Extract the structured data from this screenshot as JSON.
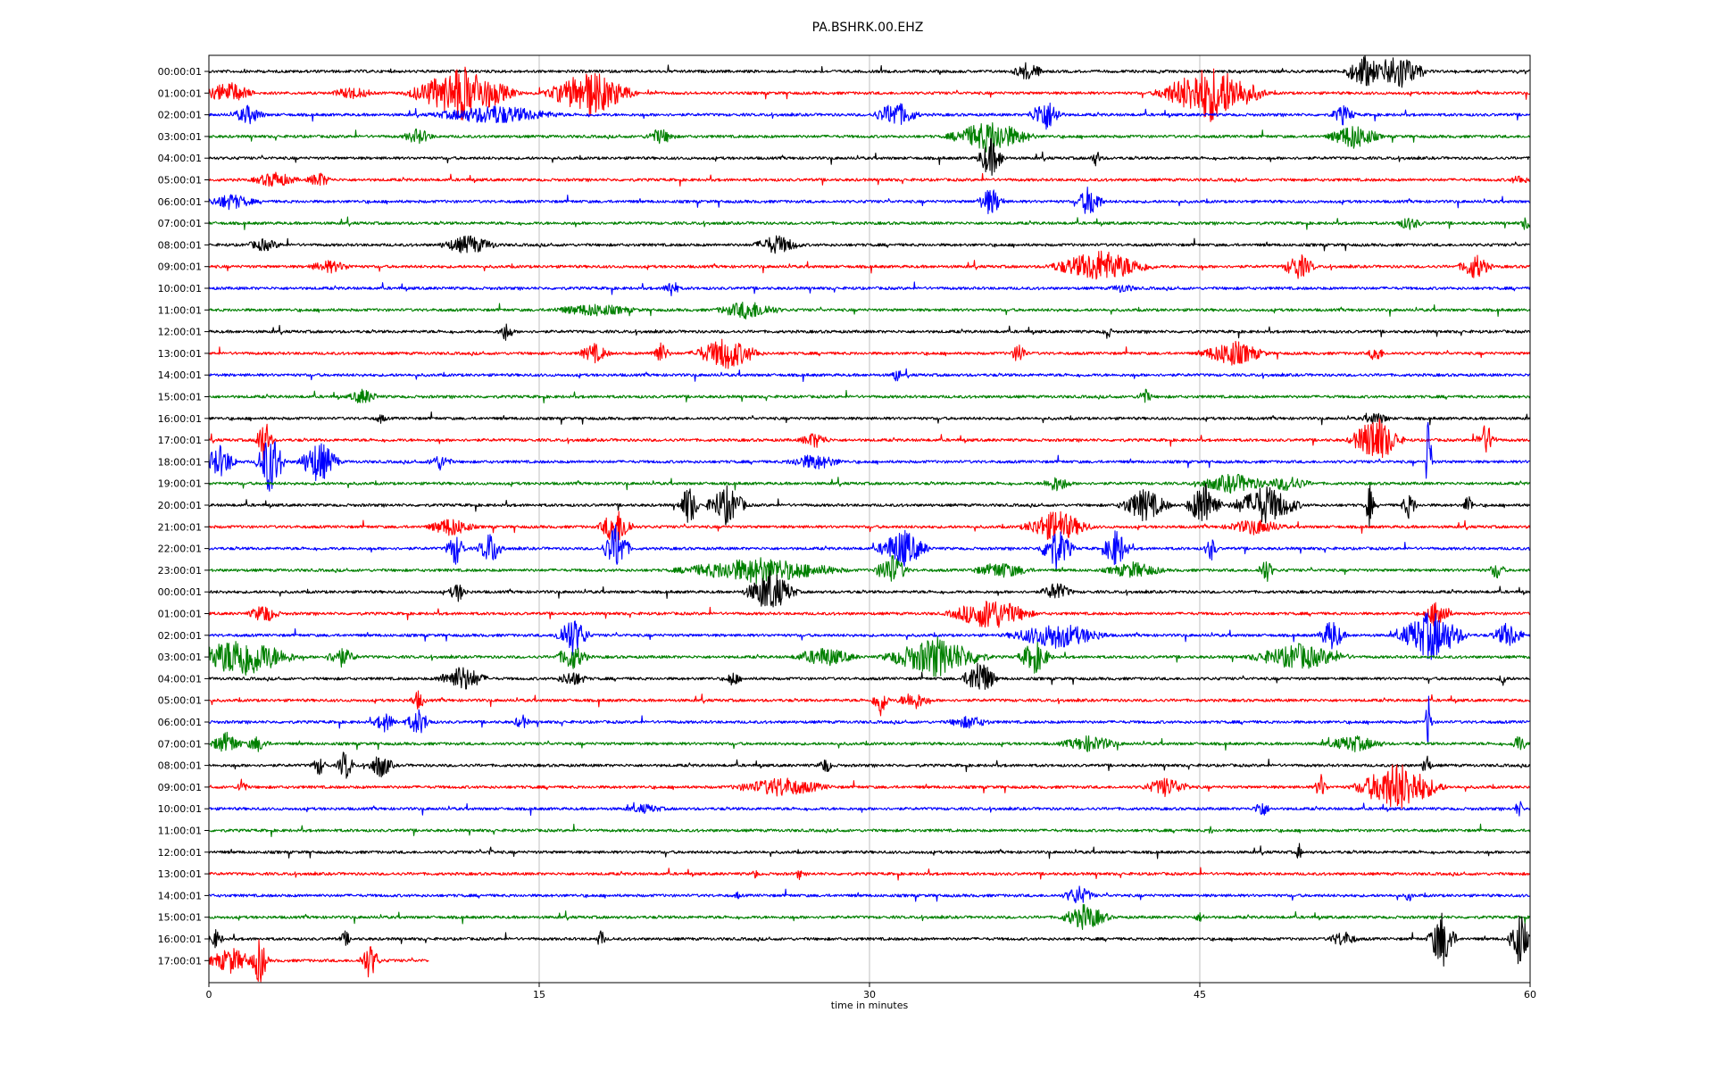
{
  "chart_data": {
    "type": "line",
    "title": "PA.BSHRK.00.EHZ",
    "xlabel": "time in minutes",
    "ylabel": "",
    "xlim": [
      0,
      60
    ],
    "x_ticks": [
      0,
      15,
      30,
      45,
      60
    ],
    "grid": "vertical lines at x ticks",
    "colors": [
      "#000000",
      "#ff0000",
      "#0000ff",
      "#008000"
    ],
    "rows": [
      {
        "label": "00:00:01",
        "color": "#000000",
        "end_minute": 60,
        "bursts": [
          [
            37.2,
            1.0,
            0.6
          ],
          [
            52.5,
            1.3,
            1.0
          ],
          [
            54.0,
            1.5,
            1.2
          ]
        ]
      },
      {
        "label": "01:00:01",
        "color": "#ff0000",
        "end_minute": 60,
        "bursts": [
          [
            0.9,
            1.5,
            0.7
          ],
          [
            6.5,
            1.4,
            0.4
          ],
          [
            11.5,
            3.0,
            1.6
          ],
          [
            17.3,
            2.5,
            1.4
          ],
          [
            45.5,
            3.0,
            1.7
          ]
        ]
      },
      {
        "label": "02:00:01",
        "color": "#0000ff",
        "end_minute": 60,
        "bursts": [
          [
            1.8,
            1.0,
            0.6
          ],
          [
            13.0,
            4.0,
            0.6
          ],
          [
            31.2,
            1.4,
            0.8
          ],
          [
            38.0,
            1.0,
            1.0
          ],
          [
            51.5,
            0.8,
            0.6
          ]
        ]
      },
      {
        "label": "03:00:01",
        "color": "#008000",
        "end_minute": 60,
        "bursts": [
          [
            9.5,
            1.0,
            0.5
          ],
          [
            20.5,
            1.0,
            0.5
          ],
          [
            35.5,
            2.5,
            1.0
          ],
          [
            52.0,
            1.6,
            0.8
          ]
        ]
      },
      {
        "label": "04:00:01",
        "color": "#000000",
        "end_minute": 60,
        "bursts": [
          [
            35.5,
            0.8,
            1.2
          ],
          [
            40.3,
            0.4,
            0.5
          ]
        ]
      },
      {
        "label": "05:00:01",
        "color": "#ff0000",
        "end_minute": 60,
        "bursts": [
          [
            3.0,
            1.5,
            0.5
          ],
          [
            5.0,
            0.8,
            0.5
          ],
          [
            59.5,
            0.8,
            0.3
          ]
        ]
      },
      {
        "label": "06:00:01",
        "color": "#0000ff",
        "end_minute": 60,
        "bursts": [
          [
            1.0,
            1.6,
            0.5
          ],
          [
            35.5,
            0.8,
            0.9
          ],
          [
            40.0,
            0.8,
            1.0
          ]
        ]
      },
      {
        "label": "07:00:01",
        "color": "#008000",
        "end_minute": 60,
        "bursts": [
          [
            54.5,
            1.0,
            0.4
          ],
          [
            59.8,
            0.3,
            0.5
          ]
        ]
      },
      {
        "label": "08:00:01",
        "color": "#000000",
        "end_minute": 60,
        "bursts": [
          [
            2.5,
            1.2,
            0.4
          ],
          [
            11.8,
            1.8,
            0.6
          ],
          [
            25.8,
            1.5,
            0.6
          ]
        ]
      },
      {
        "label": "09:00:01",
        "color": "#ff0000",
        "end_minute": 60,
        "bursts": [
          [
            5.5,
            1.5,
            0.4
          ],
          [
            40.5,
            3.0,
            1.0
          ],
          [
            49.5,
            1.0,
            0.8
          ],
          [
            57.5,
            1.0,
            0.8
          ]
        ]
      },
      {
        "label": "10:00:01",
        "color": "#0000ff",
        "end_minute": 60,
        "bursts": [
          [
            21.0,
            0.5,
            0.6
          ],
          [
            41.5,
            1.0,
            0.3
          ]
        ]
      },
      {
        "label": "11:00:01",
        "color": "#008000",
        "end_minute": 60,
        "bursts": [
          [
            17.5,
            3.0,
            0.4
          ],
          [
            24.5,
            2.0,
            0.6
          ]
        ]
      },
      {
        "label": "12:00:01",
        "color": "#000000",
        "end_minute": 60,
        "bursts": [
          [
            13.5,
            0.5,
            0.6
          ],
          [
            40.8,
            0.3,
            0.5
          ]
        ]
      },
      {
        "label": "13:00:01",
        "color": "#ff0000",
        "end_minute": 60,
        "bursts": [
          [
            17.5,
            1.0,
            0.6
          ],
          [
            20.5,
            0.6,
            0.7
          ],
          [
            23.5,
            2.0,
            1.0
          ],
          [
            36.8,
            0.5,
            0.7
          ],
          [
            46.5,
            2.0,
            0.8
          ],
          [
            53.0,
            0.5,
            0.6
          ]
        ]
      },
      {
        "label": "14:00:01",
        "color": "#0000ff",
        "end_minute": 60,
        "bursts": [
          [
            31.2,
            0.3,
            0.5
          ]
        ]
      },
      {
        "label": "15:00:01",
        "color": "#008000",
        "end_minute": 60,
        "bursts": [
          [
            7.0,
            1.0,
            0.5
          ],
          [
            42.5,
            0.5,
            0.5
          ]
        ]
      },
      {
        "label": "16:00:01",
        "color": "#000000",
        "end_minute": 60,
        "bursts": [
          [
            7.8,
            0.5,
            0.3
          ],
          [
            53.0,
            1.0,
            0.4
          ]
        ]
      },
      {
        "label": "17:00:01",
        "color": "#ff0000",
        "end_minute": 60,
        "bursts": [
          [
            2.5,
            0.5,
            1.5
          ],
          [
            27.5,
            1.0,
            0.5
          ],
          [
            53.0,
            1.5,
            1.5
          ],
          [
            58.0,
            0.6,
            1.0
          ]
        ]
      },
      {
        "label": "18:00:01",
        "color": "#0000ff",
        "end_minute": 60,
        "bursts": [
          [
            0.5,
            1.0,
            1.0
          ],
          [
            2.8,
            0.8,
            2.0
          ],
          [
            5.0,
            1.2,
            1.3
          ],
          [
            10.5,
            0.8,
            0.5
          ],
          [
            27.5,
            1.8,
            0.5
          ],
          [
            55.4,
            0.2,
            3.5
          ]
        ]
      },
      {
        "label": "19:00:01",
        "color": "#008000",
        "end_minute": 60,
        "bursts": [
          [
            38.5,
            1.0,
            0.5
          ],
          [
            46.5,
            2.5,
            0.6
          ],
          [
            49.0,
            1.5,
            0.5
          ]
        ]
      },
      {
        "label": "20:00:01",
        "color": "#000000",
        "end_minute": 60,
        "bursts": [
          [
            21.8,
            0.6,
            1.3
          ],
          [
            23.5,
            1.2,
            1.2
          ],
          [
            42.5,
            1.5,
            1.0
          ],
          [
            45.2,
            1.0,
            1.5
          ],
          [
            48.0,
            2.0,
            1.2
          ],
          [
            52.7,
            0.3,
            1.3
          ],
          [
            54.5,
            0.5,
            0.8
          ],
          [
            57.2,
            0.3,
            0.8
          ]
        ]
      },
      {
        "label": "21:00:01",
        "color": "#ff0000",
        "end_minute": 60,
        "bursts": [
          [
            11.0,
            1.5,
            0.6
          ],
          [
            18.5,
            1.0,
            1.2
          ],
          [
            38.5,
            2.0,
            1.0
          ],
          [
            47.5,
            2.0,
            0.5
          ]
        ]
      },
      {
        "label": "22:00:01",
        "color": "#0000ff",
        "end_minute": 60,
        "bursts": [
          [
            11.2,
            0.6,
            1.0
          ],
          [
            12.8,
            0.8,
            1.0
          ],
          [
            18.5,
            0.8,
            1.5
          ],
          [
            31.5,
            1.5,
            1.2
          ],
          [
            38.5,
            1.0,
            1.3
          ],
          [
            41.2,
            0.8,
            1.2
          ],
          [
            45.5,
            0.4,
            0.8
          ]
        ]
      },
      {
        "label": "23:00:01",
        "color": "#008000",
        "end_minute": 60,
        "bursts": [
          [
            25.0,
            5.0,
            0.8
          ],
          [
            31.0,
            1.0,
            1.0
          ],
          [
            36.0,
            2.0,
            0.5
          ],
          [
            42.0,
            2.0,
            0.5
          ],
          [
            48.0,
            0.5,
            0.8
          ],
          [
            58.5,
            0.5,
            0.6
          ]
        ]
      },
      {
        "label": "00:00:01",
        "color": "#000000",
        "end_minute": 60,
        "bursts": [
          [
            11.3,
            0.6,
            0.6
          ],
          [
            25.5,
            1.5,
            1.3
          ],
          [
            38.5,
            1.0,
            0.6
          ]
        ]
      },
      {
        "label": "01:00:01",
        "color": "#ff0000",
        "end_minute": 60,
        "bursts": [
          [
            2.5,
            1.0,
            0.6
          ],
          [
            35.5,
            2.5,
            1.0
          ],
          [
            55.8,
            0.8,
            1.0
          ]
        ]
      },
      {
        "label": "02:00:01",
        "color": "#0000ff",
        "end_minute": 60,
        "bursts": [
          [
            16.5,
            1.0,
            1.2
          ],
          [
            38.5,
            3.0,
            0.8
          ],
          [
            51.0,
            0.8,
            1.0
          ],
          [
            55.5,
            2.0,
            1.5
          ],
          [
            59.0,
            1.0,
            0.8
          ]
        ]
      },
      {
        "label": "03:00:01",
        "color": "#008000",
        "end_minute": 60,
        "bursts": [
          [
            1.5,
            3.0,
            1.3
          ],
          [
            6.0,
            1.0,
            0.6
          ],
          [
            16.5,
            1.0,
            0.8
          ],
          [
            28.0,
            2.0,
            0.6
          ],
          [
            33.0,
            3.0,
            1.2
          ],
          [
            37.5,
            1.0,
            1.0
          ],
          [
            49.5,
            3.0,
            0.8
          ]
        ]
      },
      {
        "label": "04:00:01",
        "color": "#000000",
        "end_minute": 60,
        "bursts": [
          [
            11.5,
            1.5,
            0.8
          ],
          [
            16.5,
            1.0,
            0.5
          ],
          [
            23.8,
            0.5,
            0.5
          ],
          [
            35.0,
            1.0,
            1.2
          ],
          [
            58.8,
            0.3,
            0.5
          ]
        ]
      },
      {
        "label": "05:00:01",
        "color": "#ff0000",
        "end_minute": 60,
        "bursts": [
          [
            9.5,
            0.5,
            0.6
          ],
          [
            30.5,
            0.5,
            1.0
          ],
          [
            32.0,
            1.0,
            0.6
          ]
        ]
      },
      {
        "label": "06:00:01",
        "color": "#0000ff",
        "end_minute": 60,
        "bursts": [
          [
            8.0,
            0.8,
            0.6
          ],
          [
            9.5,
            0.8,
            0.8
          ],
          [
            14.2,
            0.5,
            0.5
          ],
          [
            34.5,
            1.5,
            0.4
          ],
          [
            55.4,
            0.2,
            2.0
          ]
        ]
      },
      {
        "label": "07:00:01",
        "color": "#008000",
        "end_minute": 60,
        "bursts": [
          [
            0.8,
            1.0,
            0.7
          ],
          [
            2.2,
            0.8,
            0.5
          ],
          [
            40.0,
            2.0,
            0.5
          ],
          [
            52.0,
            2.0,
            0.5
          ],
          [
            59.5,
            0.5,
            0.6
          ]
        ]
      },
      {
        "label": "08:00:01",
        "color": "#000000",
        "end_minute": 60,
        "bursts": [
          [
            5.0,
            0.5,
            0.6
          ],
          [
            6.2,
            0.5,
            1.0
          ],
          [
            7.8,
            0.8,
            0.8
          ],
          [
            28.0,
            0.5,
            0.5
          ],
          [
            55.3,
            0.3,
            0.8
          ]
        ]
      },
      {
        "label": "09:00:01",
        "color": "#ff0000",
        "end_minute": 60,
        "bursts": [
          [
            1.5,
            0.3,
            0.7
          ],
          [
            26.0,
            3.0,
            0.6
          ],
          [
            43.5,
            1.5,
            0.6
          ],
          [
            50.5,
            0.4,
            0.8
          ],
          [
            54.0,
            2.5,
            1.5
          ]
        ]
      },
      {
        "label": "10:00:01",
        "color": "#0000ff",
        "end_minute": 60,
        "bursts": [
          [
            19.8,
            1.5,
            0.3
          ],
          [
            47.8,
            0.5,
            0.6
          ],
          [
            59.5,
            0.3,
            0.6
          ]
        ]
      },
      {
        "label": "11:00:01",
        "color": "#008000",
        "end_minute": 60,
        "bursts": [
          [
            45.5,
            0.2,
            0.3
          ]
        ]
      },
      {
        "label": "12:00:01",
        "color": "#000000",
        "end_minute": 60,
        "bursts": [
          [
            12.8,
            0.2,
            0.3
          ],
          [
            49.5,
            0.2,
            0.6
          ]
        ]
      },
      {
        "label": "13:00:01",
        "color": "#ff0000",
        "end_minute": 60,
        "bursts": [
          [
            24.8,
            0.2,
            0.4
          ],
          [
            26.8,
            0.2,
            0.4
          ]
        ]
      },
      {
        "label": "14:00:01",
        "color": "#0000ff",
        "end_minute": 60,
        "bursts": [
          [
            24.0,
            0.2,
            0.3
          ],
          [
            39.5,
            1.0,
            0.6
          ],
          [
            54.5,
            0.3,
            0.4
          ]
        ]
      },
      {
        "label": "15:00:01",
        "color": "#008000",
        "end_minute": 60,
        "bursts": [
          [
            39.8,
            1.5,
            0.8
          ],
          [
            45.0,
            0.5,
            0.3
          ]
        ]
      },
      {
        "label": "16:00:01",
        "color": "#000000",
        "end_minute": 60,
        "bursts": [
          [
            0.3,
            0.5,
            0.6
          ],
          [
            6.2,
            0.4,
            0.5
          ],
          [
            17.8,
            0.3,
            0.6
          ],
          [
            51.5,
            1.0,
            0.5
          ],
          [
            56.0,
            0.8,
            1.8
          ],
          [
            59.5,
            0.6,
            1.8
          ]
        ]
      },
      {
        "label": "17:00:01",
        "color": "#ff0000",
        "end_minute": 10,
        "bursts": [
          [
            1.0,
            1.5,
            0.8
          ],
          [
            2.3,
            0.5,
            1.5
          ],
          [
            7.3,
            0.6,
            1.1
          ]
        ]
      }
    ]
  }
}
